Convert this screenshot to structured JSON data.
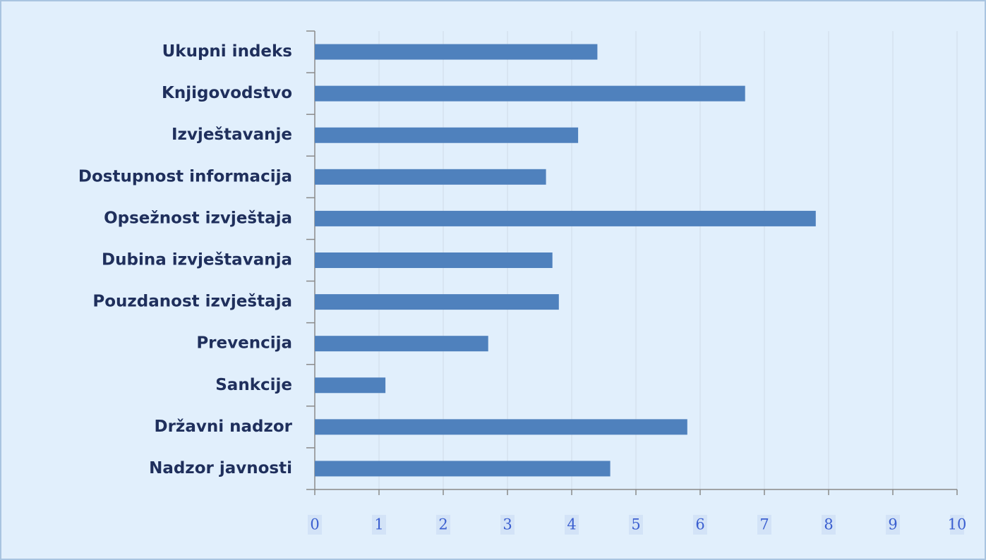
{
  "chart_data": {
    "type": "bar",
    "orientation": "horizontal",
    "categories": [
      "Ukupni indeks",
      "Knjigovodstvo",
      "Izvještavanje",
      "Dostupnost informacija",
      "Opsežnost izvještaja",
      "Dubina izvještavanja",
      "Pouzdanost izvještaja",
      "Prevencija",
      "Sankcije",
      "Državni nadzor",
      "Nadzor javnosti"
    ],
    "values": [
      4.4,
      6.7,
      4.1,
      3.6,
      7.8,
      3.7,
      3.8,
      2.7,
      1.1,
      5.8,
      4.6
    ],
    "color": "#4f81bd",
    "xlim": [
      0,
      10
    ],
    "xticks": [
      0,
      1,
      2,
      3,
      4,
      5,
      6,
      7,
      8,
      9,
      10
    ],
    "grid": true
  }
}
